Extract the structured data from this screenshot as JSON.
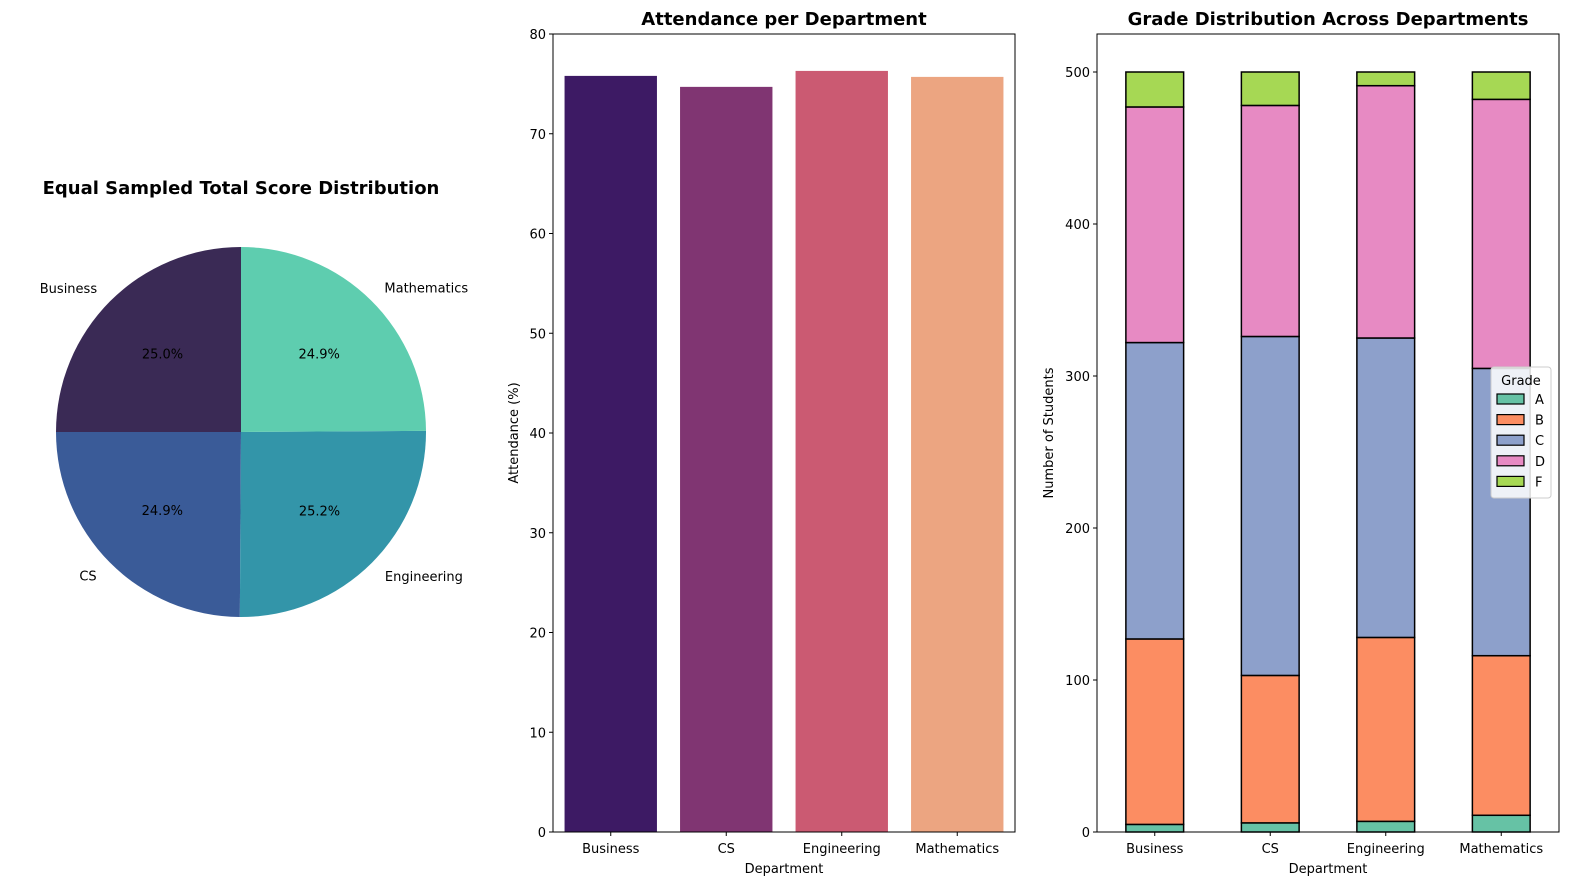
{
  "chart_data": [
    {
      "type": "pie",
      "title": "Equal Sampled Total Score Distribution",
      "slices": [
        {
          "label": "Business",
          "percent": 25.0,
          "pct_label": "25.0%",
          "color": "#3a2a55"
        },
        {
          "label": "CS",
          "percent": 24.9,
          "pct_label": "24.9%",
          "color": "#3a5b98"
        },
        {
          "label": "Engineering",
          "percent": 25.2,
          "pct_label": "25.2%",
          "color": "#3395a9"
        },
        {
          "label": "Mathematics",
          "percent": 24.9,
          "pct_label": "24.9%",
          "color": "#5ecdaf"
        }
      ]
    },
    {
      "type": "bar",
      "title": "Attendance per Department",
      "xlabel": "Department",
      "ylabel": "Attendance (%)",
      "categories": [
        "Business",
        "CS",
        "Engineering",
        "Mathematics"
      ],
      "values": [
        75.8,
        74.7,
        76.3,
        75.7
      ],
      "colors": [
        "#3d1a64",
        "#803572",
        "#cb5a72",
        "#eca581"
      ],
      "ylim": [
        0,
        80
      ],
      "yticks": [
        0,
        10,
        20,
        30,
        40,
        50,
        60,
        70,
        80
      ]
    },
    {
      "type": "bar",
      "stacked": true,
      "title": "Grade Distribution Across Departments",
      "xlabel": "Department",
      "ylabel": "Number of Students",
      "categories": [
        "Business",
        "CS",
        "Engineering",
        "Mathematics"
      ],
      "series": [
        {
          "name": "A",
          "color": "#66c2a5",
          "values": [
            5,
            6,
            7,
            11
          ]
        },
        {
          "name": "B",
          "color": "#fc8d62",
          "values": [
            122,
            97,
            121,
            105
          ]
        },
        {
          "name": "C",
          "color": "#8da0cb",
          "values": [
            195,
            223,
            197,
            189
          ]
        },
        {
          "name": "D",
          "color": "#e78ac3",
          "values": [
            155,
            152,
            166,
            177
          ]
        },
        {
          "name": "F",
          "color": "#a6d854",
          "values": [
            23,
            22,
            9,
            18
          ]
        }
      ],
      "ylim": [
        0,
        525
      ],
      "yticks": [
        0,
        100,
        200,
        300,
        400,
        500
      ],
      "legend_title": "Grade",
      "legend_position": "center-right"
    }
  ]
}
